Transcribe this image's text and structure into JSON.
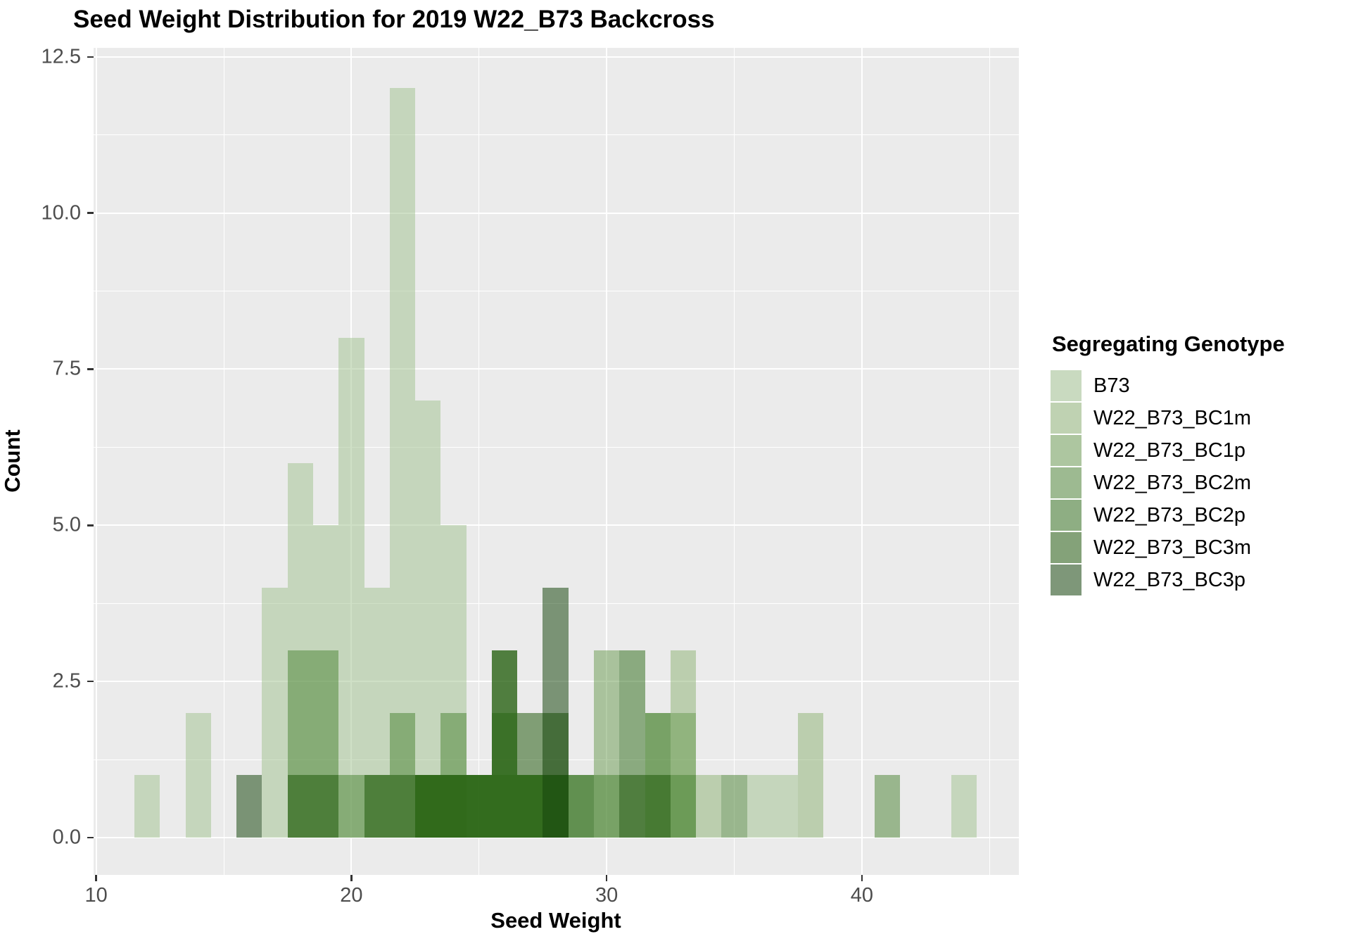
{
  "title": "Seed Weight Distribution for 2019 W22_B73 Backcross",
  "chart_data": {
    "type": "histogram",
    "subtype": "overlaid-identity-alpha",
    "title": "Seed Weight Distribution for 2019 W22_B73 Backcross",
    "xlabel": "Seed Weight",
    "ylabel": "Count",
    "legend_title": "Segregating Genotype",
    "legend_position": "right",
    "grid": true,
    "panel_background": "#EBEBEB",
    "gridline_color": "#ffffff",
    "tick_label_color": "#4D4D4D",
    "alpha": 0.5,
    "bin_width": 1,
    "xlim": [
      9.9,
      46.15
    ],
    "ylim": [
      0,
      12.65
    ],
    "x_ticks": {
      "major": [
        10,
        20,
        30,
        40
      ],
      "minor": [
        15,
        25,
        35,
        45
      ],
      "labels": [
        "10",
        "20",
        "30",
        "40"
      ]
    },
    "y_ticks": {
      "major": [
        0,
        2.5,
        5,
        7.5,
        10,
        12.5
      ],
      "minor": [
        1.25,
        3.75,
        6.25,
        8.75,
        11.25
      ],
      "labels": [
        "0.0",
        "2.5",
        "5.0",
        "7.5",
        "10.0",
        "12.5"
      ]
    },
    "series": [
      {
        "name": "B73",
        "base_color": "rgb(159,193,141)",
        "bins": {
          "12": 1,
          "14": 2,
          "17": 4,
          "18": 6,
          "19": 5,
          "20": 8,
          "21": 4,
          "22": 12,
          "23": 7,
          "24": 5,
          "36": 1,
          "37": 1,
          "44": 1
        }
      },
      {
        "name": "W22_B73_BC1m",
        "base_color": "rgb(139,177,113)",
        "bins": {
          "33": 3,
          "34": 1,
          "38": 2
        }
      },
      {
        "name": "W22_B73_BC1p",
        "base_color": "rgb(103,153,77)",
        "bins": {
          "23": 1,
          "24": 1,
          "25": 1,
          "26": 1,
          "27": 1,
          "30": 3,
          "32": 2,
          "33": 2
        }
      },
      {
        "name": "W22_B73_BC2m",
        "base_color": "rgb(71,129,47)",
        "bins": {
          "18": 3,
          "19": 3,
          "20": 1,
          "21": 1,
          "22": 2,
          "23": 1,
          "24": 2,
          "25": 1,
          "26": 2,
          "27": 1,
          "28": 1,
          "29": 1,
          "30": 1,
          "32": 2,
          "33": 1,
          "35": 1,
          "41": 1
        }
      },
      {
        "name": "W22_B73_BC2p",
        "base_color": "rgb(41,105,19)",
        "bins": {
          "23": 1,
          "24": 1,
          "25": 1,
          "26": 3,
          "27": 1,
          "28": 1,
          "29": 1,
          "31": 3
        }
      },
      {
        "name": "W22_B73_BC3m",
        "base_color": "rgb(21,81,0)",
        "bins": {
          "18": 1,
          "19": 1,
          "21": 1,
          "22": 1,
          "23": 1,
          "24": 1,
          "25": 1,
          "26": 3,
          "27": 2,
          "28": 2,
          "31": 1,
          "32": 1
        }
      },
      {
        "name": "W22_B73_BC3p",
        "base_color": "rgb(9,59,0)",
        "bins": {
          "16": 1,
          "28": 4
        }
      }
    ]
  }
}
